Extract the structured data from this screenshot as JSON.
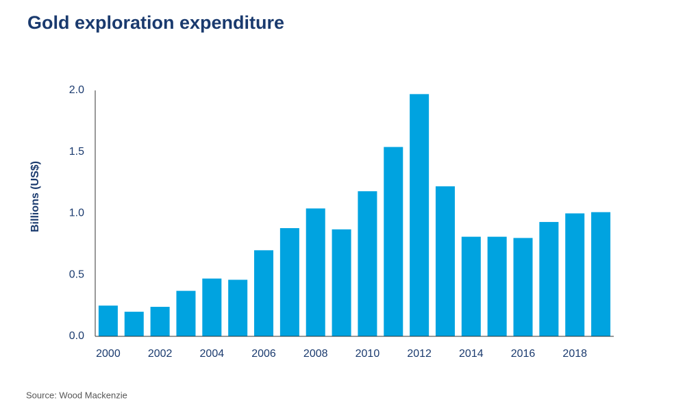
{
  "chart_data": {
    "type": "bar",
    "title": "Gold exploration expenditure",
    "y_label": "Billions (US$)",
    "source": "Source: Wood Mackenzie",
    "categories": [
      "2000",
      null,
      "2002",
      null,
      "2004",
      null,
      "2006",
      null,
      "2008",
      null,
      "2010",
      null,
      "2012",
      null,
      "2014",
      null,
      "2016",
      null,
      "2018",
      null
    ],
    "values": [
      0.25,
      0.2,
      0.24,
      0.37,
      0.47,
      0.46,
      0.7,
      0.88,
      1.04,
      0.87,
      1.18,
      1.54,
      1.97,
      1.22,
      0.81,
      0.81,
      0.8,
      0.93,
      1.0,
      1.01
    ],
    "color": "#00a3e0",
    "ylim": [
      0,
      2
    ],
    "yticks": [
      {
        "value": 0,
        "label": "0.0"
      },
      0.5,
      {
        "value": 1,
        "label": "1.0"
      },
      1.5,
      {
        "value": 2,
        "label": "2.0"
      }
    ],
    "grid": false
  }
}
